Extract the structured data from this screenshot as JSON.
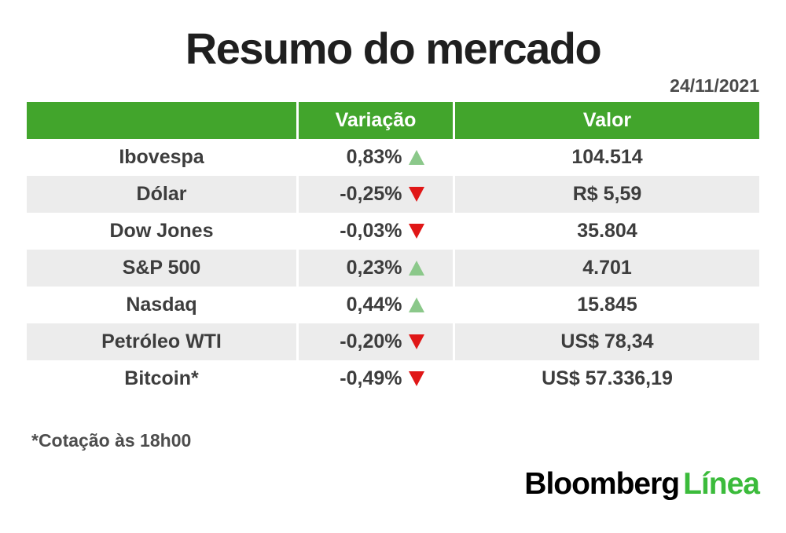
{
  "page": {
    "title": "Resumo do mercado",
    "date": "24/11/2021",
    "footnote": "*Cotação às 18h00"
  },
  "logo": {
    "bloomberg": "Bloomberg",
    "linea": "Línea"
  },
  "colors": {
    "header_green": "#42a52c",
    "row_alt_gray": "#ececec",
    "up_triangle_green": "#8bc88a",
    "down_triangle_red": "#e01717",
    "logo_green": "#3bbb3b",
    "text_dark": "#3d3d3d"
  },
  "chart_data": {
    "type": "table",
    "title": "Resumo do mercado",
    "date": "24/11/2021",
    "columns": [
      "",
      "Variação",
      "Valor"
    ],
    "rows": [
      {
        "name": "Ibovespa",
        "variation": "0,83%",
        "direction": "up",
        "value": "104.514"
      },
      {
        "name": "Dólar",
        "variation": "-0,25%",
        "direction": "down",
        "value": "R$ 5,59"
      },
      {
        "name": "Dow Jones",
        "variation": "-0,03%",
        "direction": "down",
        "value": "35.804"
      },
      {
        "name": "S&P 500",
        "variation": "0,23%",
        "direction": "up",
        "value": "4.701"
      },
      {
        "name": "Nasdaq",
        "variation": "0,44%",
        "direction": "up",
        "value": "15.845"
      },
      {
        "name": "Petróleo WTI",
        "variation": "-0,20%",
        "direction": "down",
        "value": "US$ 78,34"
      },
      {
        "name": "Bitcoin*",
        "variation": "-0,49%",
        "direction": "down",
        "value": "US$ 57.336,19"
      }
    ],
    "footnote": "*Cotação às 18h00",
    "source_logo": "Bloomberg Línea",
    "grid": false,
    "legend_position": "none"
  }
}
